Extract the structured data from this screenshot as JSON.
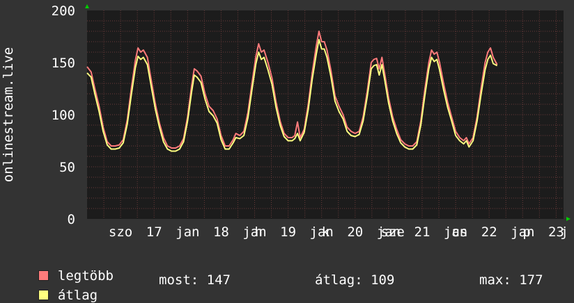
{
  "chart_data": {
    "type": "line",
    "ylabel": "onlinestream.live",
    "ylim": [
      0,
      200
    ],
    "yticks": [
      0,
      50,
      100,
      150,
      200
    ],
    "x_labels": [
      {
        "text": "szo",
        "pos": 0.5
      },
      {
        "text": "17",
        "pos": 1.0
      },
      {
        "text": "jan",
        "pos": 1.5
      },
      {
        "text": "18",
        "pos": 2.0
      },
      {
        "text": "jan",
        "pos": 2.5
      },
      {
        "text": "h",
        "pos": 2.56
      },
      {
        "text": "19",
        "pos": 3.0
      },
      {
        "text": "jan",
        "pos": 3.5
      },
      {
        "text": "k",
        "pos": 3.56
      },
      {
        "text": "20",
        "pos": 4.0
      },
      {
        "text": "jan",
        "pos": 4.5
      },
      {
        "text": "sze",
        "pos": 4.56
      },
      {
        "text": "21",
        "pos": 5.0
      },
      {
        "text": "jan",
        "pos": 5.5
      },
      {
        "text": "cs",
        "pos": 5.56
      },
      {
        "text": "22",
        "pos": 6.0
      },
      {
        "text": "jan",
        "pos": 6.5
      },
      {
        "text": "p",
        "pos": 6.56
      },
      {
        "text": "23",
        "pos": 7.0
      },
      {
        "text": "j",
        "pos": 7.12
      }
    ],
    "x_range_days": [
      0,
      7.03
    ],
    "series": [
      {
        "name": "legtöbb",
        "color": "#ff7b7b",
        "points": [
          [
            0.0,
            146
          ],
          [
            0.06,
            141
          ],
          [
            0.12,
            124
          ],
          [
            0.18,
            108
          ],
          [
            0.24,
            88
          ],
          [
            0.3,
            74
          ],
          [
            0.36,
            70
          ],
          [
            0.42,
            70
          ],
          [
            0.48,
            71
          ],
          [
            0.54,
            76
          ],
          [
            0.6,
            95
          ],
          [
            0.66,
            125
          ],
          [
            0.72,
            152
          ],
          [
            0.76,
            164
          ],
          [
            0.8,
            160
          ],
          [
            0.84,
            162
          ],
          [
            0.9,
            155
          ],
          [
            0.96,
            132
          ],
          [
            1.02,
            110
          ],
          [
            1.08,
            92
          ],
          [
            1.14,
            78
          ],
          [
            1.2,
            70
          ],
          [
            1.26,
            68
          ],
          [
            1.32,
            68
          ],
          [
            1.38,
            70
          ],
          [
            1.44,
            77
          ],
          [
            1.5,
            98
          ],
          [
            1.56,
            128
          ],
          [
            1.6,
            144
          ],
          [
            1.64,
            142
          ],
          [
            1.7,
            137
          ],
          [
            1.76,
            120
          ],
          [
            1.82,
            108
          ],
          [
            1.88,
            104
          ],
          [
            1.94,
            96
          ],
          [
            2.0,
            80
          ],
          [
            2.06,
            70
          ],
          [
            2.12,
            70
          ],
          [
            2.18,
            76
          ],
          [
            2.22,
            82
          ],
          [
            2.28,
            80
          ],
          [
            2.34,
            84
          ],
          [
            2.4,
            102
          ],
          [
            2.46,
            130
          ],
          [
            2.52,
            156
          ],
          [
            2.56,
            168
          ],
          [
            2.6,
            160
          ],
          [
            2.64,
            162
          ],
          [
            2.7,
            150
          ],
          [
            2.76,
            135
          ],
          [
            2.82,
            112
          ],
          [
            2.88,
            94
          ],
          [
            2.94,
            82
          ],
          [
            3.0,
            78
          ],
          [
            3.06,
            78
          ],
          [
            3.1,
            80
          ],
          [
            3.14,
            93
          ],
          [
            3.18,
            78
          ],
          [
            3.24,
            86
          ],
          [
            3.3,
            110
          ],
          [
            3.36,
            140
          ],
          [
            3.42,
            166
          ],
          [
            3.46,
            180
          ],
          [
            3.5,
            170
          ],
          [
            3.54,
            170
          ],
          [
            3.58,
            162
          ],
          [
            3.64,
            142
          ],
          [
            3.7,
            118
          ],
          [
            3.76,
            108
          ],
          [
            3.82,
            100
          ],
          [
            3.88,
            88
          ],
          [
            3.94,
            84
          ],
          [
            4.0,
            82
          ],
          [
            4.06,
            84
          ],
          [
            4.12,
            98
          ],
          [
            4.18,
            122
          ],
          [
            4.24,
            150
          ],
          [
            4.28,
            153
          ],
          [
            4.32,
            154
          ],
          [
            4.36,
            144
          ],
          [
            4.4,
            155
          ],
          [
            4.44,
            140
          ],
          [
            4.5,
            116
          ],
          [
            4.56,
            98
          ],
          [
            4.62,
            86
          ],
          [
            4.68,
            76
          ],
          [
            4.74,
            72
          ],
          [
            4.8,
            70
          ],
          [
            4.86,
            70
          ],
          [
            4.92,
            74
          ],
          [
            4.98,
            94
          ],
          [
            5.04,
            124
          ],
          [
            5.1,
            150
          ],
          [
            5.14,
            162
          ],
          [
            5.18,
            158
          ],
          [
            5.22,
            160
          ],
          [
            5.26,
            150
          ],
          [
            5.32,
            130
          ],
          [
            5.38,
            112
          ],
          [
            5.44,
            98
          ],
          [
            5.5,
            84
          ],
          [
            5.56,
            78
          ],
          [
            5.62,
            75
          ],
          [
            5.66,
            78
          ],
          [
            5.7,
            72
          ],
          [
            5.76,
            78
          ],
          [
            5.82,
            98
          ],
          [
            5.88,
            126
          ],
          [
            5.94,
            150
          ],
          [
            5.98,
            160
          ],
          [
            6.02,
            164
          ],
          [
            6.06,
            155
          ],
          [
            6.12,
            148
          ]
        ]
      },
      {
        "name": "átlag",
        "color": "#ffff80",
        "points": [
          [
            0.0,
            140
          ],
          [
            0.06,
            136
          ],
          [
            0.12,
            119
          ],
          [
            0.18,
            103
          ],
          [
            0.24,
            84
          ],
          [
            0.3,
            71
          ],
          [
            0.36,
            67
          ],
          [
            0.42,
            67
          ],
          [
            0.48,
            68
          ],
          [
            0.54,
            73
          ],
          [
            0.6,
            91
          ],
          [
            0.66,
            119
          ],
          [
            0.72,
            145
          ],
          [
            0.76,
            156
          ],
          [
            0.8,
            153
          ],
          [
            0.84,
            155
          ],
          [
            0.9,
            148
          ],
          [
            0.96,
            126
          ],
          [
            1.02,
            105
          ],
          [
            1.08,
            88
          ],
          [
            1.14,
            74
          ],
          [
            1.2,
            67
          ],
          [
            1.26,
            65
          ],
          [
            1.32,
            65
          ],
          [
            1.38,
            67
          ],
          [
            1.44,
            74
          ],
          [
            1.5,
            94
          ],
          [
            1.56,
            122
          ],
          [
            1.6,
            138
          ],
          [
            1.64,
            136
          ],
          [
            1.7,
            131
          ],
          [
            1.76,
            115
          ],
          [
            1.82,
            103
          ],
          [
            1.88,
            99
          ],
          [
            1.94,
            92
          ],
          [
            2.0,
            76
          ],
          [
            2.06,
            67
          ],
          [
            2.12,
            67
          ],
          [
            2.18,
            73
          ],
          [
            2.22,
            78
          ],
          [
            2.28,
            77
          ],
          [
            2.34,
            80
          ],
          [
            2.4,
            97
          ],
          [
            2.46,
            124
          ],
          [
            2.52,
            149
          ],
          [
            2.56,
            160
          ],
          [
            2.6,
            153
          ],
          [
            2.64,
            155
          ],
          [
            2.7,
            143
          ],
          [
            2.76,
            129
          ],
          [
            2.82,
            107
          ],
          [
            2.88,
            90
          ],
          [
            2.94,
            79
          ],
          [
            3.0,
            75
          ],
          [
            3.06,
            75
          ],
          [
            3.1,
            77
          ],
          [
            3.14,
            82
          ],
          [
            3.18,
            75
          ],
          [
            3.24,
            83
          ],
          [
            3.3,
            105
          ],
          [
            3.36,
            134
          ],
          [
            3.42,
            158
          ],
          [
            3.46,
            172
          ],
          [
            3.5,
            163
          ],
          [
            3.54,
            163
          ],
          [
            3.58,
            155
          ],
          [
            3.64,
            136
          ],
          [
            3.7,
            113
          ],
          [
            3.76,
            103
          ],
          [
            3.82,
            96
          ],
          [
            3.88,
            84
          ],
          [
            3.94,
            80
          ],
          [
            4.0,
            79
          ],
          [
            4.06,
            81
          ],
          [
            4.12,
            94
          ],
          [
            4.18,
            117
          ],
          [
            4.24,
            144
          ],
          [
            4.28,
            147
          ],
          [
            4.32,
            148
          ],
          [
            4.36,
            138
          ],
          [
            4.4,
            148
          ],
          [
            4.44,
            134
          ],
          [
            4.5,
            111
          ],
          [
            4.56,
            94
          ],
          [
            4.62,
            82
          ],
          [
            4.68,
            73
          ],
          [
            4.74,
            69
          ],
          [
            4.8,
            67
          ],
          [
            4.86,
            67
          ],
          [
            4.92,
            71
          ],
          [
            4.98,
            90
          ],
          [
            5.04,
            118
          ],
          [
            5.1,
            144
          ],
          [
            5.14,
            155
          ],
          [
            5.18,
            151
          ],
          [
            5.22,
            153
          ],
          [
            5.26,
            143
          ],
          [
            5.32,
            124
          ],
          [
            5.38,
            107
          ],
          [
            5.44,
            94
          ],
          [
            5.5,
            80
          ],
          [
            5.56,
            75
          ],
          [
            5.62,
            72
          ],
          [
            5.66,
            75
          ],
          [
            5.7,
            69
          ],
          [
            5.76,
            75
          ],
          [
            5.82,
            94
          ],
          [
            5.88,
            120
          ],
          [
            5.94,
            143
          ],
          [
            5.98,
            153
          ],
          [
            6.02,
            157
          ],
          [
            6.06,
            149
          ],
          [
            6.12,
            147
          ]
        ]
      }
    ],
    "grid": true
  },
  "legend": {
    "items": [
      {
        "label": "legtöbb",
        "color": "#ff7b7b"
      },
      {
        "label": "átlag",
        "color": "#ffff80"
      }
    ],
    "stats": {
      "most": "most: 147",
      "atlag": "átlag: 109",
      "max": "max: 177"
    }
  },
  "colors": {
    "background": "#333333",
    "plot_bg": "#1c1c1c",
    "grid": "#6a3a3a",
    "axis": "#999999",
    "arrow": "#00cc00"
  }
}
